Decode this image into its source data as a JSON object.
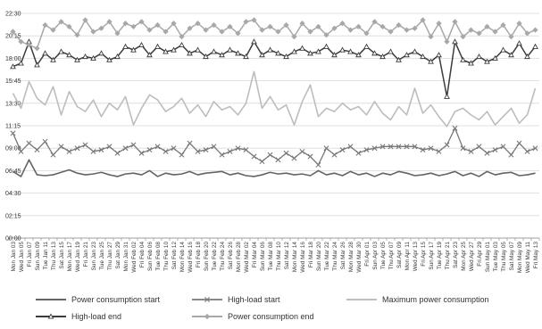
{
  "chart_data": {
    "type": "line",
    "title": "",
    "xlabel": "",
    "ylabel": "",
    "y_unit": "time of day (hh:mm)",
    "yticks": [
      "00:00",
      "02:15",
      "04:30",
      "06:45",
      "09:00",
      "11:15",
      "13:30",
      "15:45",
      "18:00",
      "20:15",
      "22:30"
    ],
    "ylim": [
      "00:00",
      "22:30"
    ],
    "grid": "horizontal",
    "legend_position": "bottom",
    "x_labels": [
      "Mon Jan 03",
      "Wed Jan 05",
      "Fri Jan 07",
      "Sun Jan 09",
      "Tue Jan 11",
      "Thu Jan 13",
      "Sat Jan 15",
      "Mon Jan 17",
      "Wed Jan 19",
      "Fri Jan 21",
      "Sun Jan 23",
      "Tue Jan 25",
      "Thu Jan 27",
      "Sat Jan 29",
      "Mon Jan 31",
      "Wed Feb 02",
      "Fri Feb 04",
      "Sun Feb 06",
      "Tue Feb 08",
      "Thu Feb 10",
      "Sat Feb 12",
      "Mon Feb 14",
      "Wed Feb 16",
      "Fri Feb 18",
      "Sun Feb 20",
      "Tue Feb 22",
      "Thu Feb 24",
      "Sat Feb 26",
      "Mon Feb 28",
      "Wed Mar 02",
      "Fri Mar 04",
      "Sun Mar 06",
      "Tue Mar 08",
      "Thu Mar 10",
      "Sat Mar 12",
      "Mon Mar 14",
      "Wed Mar 16",
      "Fri Mar 18",
      "Sun Mar 20",
      "Tue Mar 22",
      "Thu Mar 24",
      "Sat Mar 26",
      "Mon Mar 28",
      "Wed Mar 30",
      "Fri Apr 01",
      "Sun Apr 03",
      "Tue Apr 05",
      "Thu Apr 07",
      "Sat Apr 09",
      "Mon Apr 11",
      "Wed Apr 13",
      "Fri Apr 15",
      "Sun Apr 17",
      "Tue Apr 19",
      "Thu Apr 21",
      "Sat Apr 23",
      "Mon Apr 25",
      "Wed Apr 27",
      "Fri Apr 29",
      "Sun May 01",
      "Tue May 03",
      "Thu May 05",
      "Sat May 07",
      "Mon May 09",
      "Wed May 11",
      "Fri May 13"
    ],
    "series": [
      {
        "name": "Power consumption start",
        "color": "#646464",
        "marker": "none",
        "width": 1.6,
        "values": [
          "06:40",
          "06:10",
          "07:50",
          "06:20",
          "06:15",
          "06:20",
          "06:35",
          "06:50",
          "06:30",
          "06:20",
          "06:25",
          "06:35",
          "06:20",
          "06:10",
          "06:25",
          "06:30",
          "06:20",
          "06:45",
          "06:10",
          "06:30",
          "06:20",
          "06:25",
          "06:40",
          "06:20",
          "06:30",
          "06:35",
          "06:40",
          "06:20",
          "06:30",
          "06:15",
          "06:10",
          "06:20",
          "06:35",
          "06:25",
          "06:30",
          "06:20",
          "06:25",
          "06:15",
          "06:45",
          "06:20",
          "06:30",
          "06:15",
          "06:40",
          "06:20",
          "06:30",
          "06:10",
          "06:30",
          "06:20",
          "06:40",
          "06:30",
          "06:15",
          "06:20",
          "06:30",
          "06:15",
          "06:25",
          "06:40",
          "06:15",
          "06:30",
          "06:10",
          "06:40",
          "06:20",
          "06:30",
          "06:35",
          "06:15",
          "06:20",
          "06:30"
        ]
      },
      {
        "name": "High-load start",
        "color": "#787878",
        "marker": "x",
        "width": 1.3,
        "values": [
          "10:30",
          "08:40",
          "09:30",
          "08:50",
          "09:40",
          "08:20",
          "09:10",
          "08:40",
          "09:00",
          "09:20",
          "08:40",
          "08:50",
          "09:10",
          "08:30",
          "09:00",
          "09:20",
          "08:30",
          "08:50",
          "09:10",
          "08:40",
          "09:00",
          "08:20",
          "09:30",
          "08:40",
          "08:50",
          "09:10",
          "08:20",
          "08:40",
          "09:00",
          "08:50",
          "08:10",
          "07:40",
          "08:20",
          "07:50",
          "08:30",
          "08:00",
          "08:40",
          "08:10",
          "07:20",
          "09:00",
          "08:20",
          "08:50",
          "09:10",
          "08:30",
          "08:50",
          "09:00",
          "09:10",
          "09:10",
          "09:10",
          "09:10",
          "09:10",
          "08:50",
          "09:00",
          "08:40",
          "09:20",
          "11:00",
          "09:00",
          "08:40",
          "09:10",
          "08:30",
          "08:50",
          "09:10",
          "08:20",
          "09:30",
          "08:40",
          "09:00"
        ]
      },
      {
        "name": "Maximum power consumption",
        "color": "#bdbdbd",
        "marker": "none",
        "width": 1.6,
        "values": [
          "14:30",
          "13:00",
          "15:40",
          "14:00",
          "13:20",
          "15:10",
          "12:20",
          "14:40",
          "13:10",
          "12:40",
          "13:50",
          "12:10",
          "13:30",
          "12:50",
          "14:10",
          "11:20",
          "13:00",
          "14:20",
          "13:50",
          "12:40",
          "13:10",
          "14:00",
          "12:30",
          "13:20",
          "12:10",
          "13:40",
          "12:50",
          "13:10",
          "12:20",
          "13:30",
          "16:40",
          "13:00",
          "14:10",
          "12:50",
          "13:20",
          "11:20",
          "13:40",
          "15:20",
          "12:10",
          "13:00",
          "12:40",
          "13:30",
          "12:50",
          "13:10",
          "12:20",
          "13:40",
          "12:30",
          "11:50",
          "13:10",
          "12:20",
          "15:00",
          "12:30",
          "13:20",
          "12:10",
          "11:10",
          "12:40",
          "13:00",
          "12:20",
          "11:50",
          "12:40",
          "11:20",
          "12:10",
          "13:00",
          "11:30",
          "12:20",
          "15:00"
        ]
      },
      {
        "name": "High-load end",
        "color": "#3c3c3c",
        "marker": "triangle",
        "width": 1.5,
        "values": [
          "17:10",
          "17:30",
          "19:40",
          "17:20",
          "18:30",
          "17:50",
          "18:40",
          "18:20",
          "17:50",
          "18:10",
          "18:00",
          "18:30",
          "17:50",
          "18:10",
          "19:10",
          "18:50",
          "19:20",
          "18:20",
          "19:10",
          "18:40",
          "18:50",
          "19:20",
          "18:30",
          "18:50",
          "18:10",
          "18:40",
          "18:20",
          "18:50",
          "18:30",
          "18:10",
          "19:40",
          "18:20",
          "18:50",
          "18:30",
          "18:10",
          "18:40",
          "19:00",
          "18:30",
          "18:40",
          "19:10",
          "18:20",
          "18:50",
          "18:40",
          "18:20",
          "19:10",
          "18:30",
          "18:10",
          "18:40",
          "17:50",
          "18:20",
          "18:40",
          "18:10",
          "17:40",
          "18:20",
          "14:10",
          "19:40",
          "17:50",
          "17:30",
          "18:10",
          "17:40",
          "18:00",
          "18:50",
          "18:20",
          "19:30",
          "18:10",
          "19:10"
        ]
      },
      {
        "name": "Power consumption end",
        "color": "#a8a8a8",
        "marker": "diamond",
        "width": 1.5,
        "values": [
          "20:40",
          "19:40",
          "19:20",
          "19:00",
          "21:20",
          "20:50",
          "21:40",
          "21:10",
          "20:20",
          "21:50",
          "20:40",
          "21:00",
          "21:40",
          "20:30",
          "21:30",
          "21:10",
          "21:40",
          "20:50",
          "21:20",
          "20:40",
          "21:30",
          "20:10",
          "21:00",
          "21:30",
          "20:50",
          "21:20",
          "20:40",
          "21:10",
          "20:30",
          "21:40",
          "21:50",
          "20:50",
          "21:10",
          "20:40",
          "21:20",
          "20:10",
          "21:30",
          "20:40",
          "21:10",
          "20:20",
          "21:00",
          "21:30",
          "20:50",
          "21:10",
          "20:30",
          "21:40",
          "21:10",
          "20:40",
          "21:20",
          "20:50",
          "21:00",
          "21:50",
          "20:10",
          "21:30",
          "19:40",
          "21:40",
          "20:10",
          "20:50",
          "20:30",
          "21:10",
          "20:40",
          "21:20",
          "20:10",
          "21:30",
          "20:30",
          "20:50"
        ]
      }
    ]
  }
}
